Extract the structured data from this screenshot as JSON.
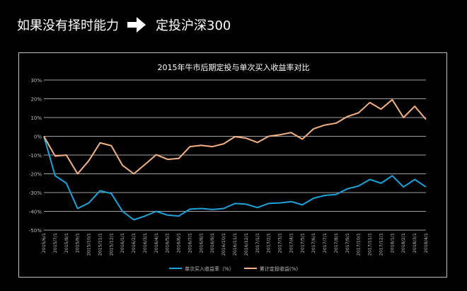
{
  "heading": {
    "left_text": "如果没有择时能力",
    "arrow_icon": "right-arrow-icon",
    "right_text": "定投沪深300"
  },
  "colors": {
    "background": "#000000",
    "series_single": "#1aa3dd",
    "series_dca": "#f4b183",
    "grid": "#d9d9d9",
    "text": "#ffffff"
  },
  "chart_data": {
    "type": "line",
    "title": "2015年牛市后期定投与单次买入收益率对比",
    "xlabel": "",
    "ylabel": "",
    "ylim": [
      -50,
      30
    ],
    "yticks": [
      "30%",
      "20%",
      "10%",
      "0%",
      "-10%",
      "-20%",
      "-30%",
      "-40%",
      "-50%"
    ],
    "ytick_values": [
      30,
      20,
      10,
      0,
      -10,
      -20,
      -30,
      -40,
      -50
    ],
    "grid": true,
    "legend_position": "bottom",
    "categories": [
      "2015/6/1",
      "2015/7/1",
      "2015/8/1",
      "2015/9/1",
      "2015/10/1",
      "2015/11/1",
      "2015/12/1",
      "2016/1/1",
      "2016/2/1",
      "2016/3/1",
      "2016/4/1",
      "2016/5/1",
      "2016/6/1",
      "2016/7/1",
      "2016/8/1",
      "2016/9/1",
      "2016/10/1",
      "2016/11/1",
      "2016/12/1",
      "2017/1/1",
      "2017/2/1",
      "2017/3/1",
      "2017/4/1",
      "2017/5/1",
      "2017/6/1",
      "2017/7/1",
      "2017/8/1",
      "2017/9/1",
      "2017/10/1",
      "2017/11/1",
      "2017/12/1",
      "2018/1/1",
      "2018/2/1",
      "2018/3/1",
      "2018/4/1"
    ],
    "series": [
      {
        "name": "单次买入收益率（%）",
        "color": "#1aa3dd",
        "values": [
          0,
          -21,
          -25,
          -38.5,
          -35.5,
          -29,
          -30.5,
          -40,
          -44.5,
          -42.5,
          -40,
          -42,
          -42.5,
          -38.8,
          -38.5,
          -39,
          -38.5,
          -35.8,
          -36.2,
          -38,
          -35.8,
          -35.5,
          -34.8,
          -36.5,
          -33,
          -31.5,
          -31,
          -28,
          -26.5,
          -23,
          -25,
          -21,
          -27,
          -23,
          -27
        ]
      },
      {
        "name": "累计定投收益(%)",
        "color": "#f4b183",
        "values": [
          0,
          -10.5,
          -10,
          -20,
          -13,
          -3.5,
          -5,
          -15.5,
          -20,
          -15,
          -9.8,
          -12.3,
          -11.8,
          -5.5,
          -4.8,
          -5.5,
          -4,
          -0.2,
          -1,
          -3.3,
          0,
          0.8,
          2,
          -1.5,
          4,
          6,
          7,
          10.5,
          12.5,
          18,
          14.5,
          19.5,
          10,
          16,
          9
        ]
      }
    ]
  }
}
